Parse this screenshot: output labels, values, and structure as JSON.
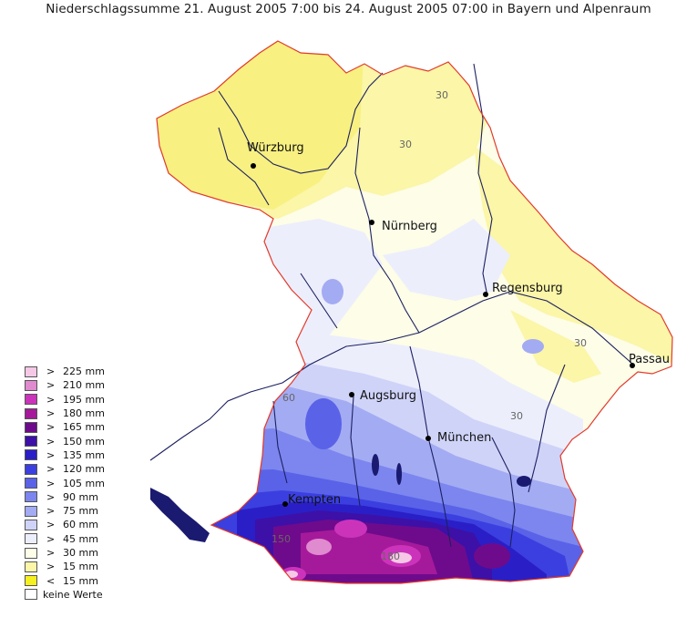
{
  "title": "Niederschlagssumme 21. August 2005 7:00 bis 24. August 2005 07:00 in Bayern und Alpenraum",
  "cities": [
    {
      "name": "Würzburg"
    },
    {
      "name": "Nürnberg"
    },
    {
      "name": "Regensburg"
    },
    {
      "name": "Passau"
    },
    {
      "name": "Augsburg"
    },
    {
      "name": "München"
    },
    {
      "name": "Kempten"
    }
  ],
  "contour_labels": [
    "30",
    "30",
    "30",
    "30",
    "60",
    "150",
    "180"
  ],
  "legend": {
    "items": [
      {
        "sym": ">",
        "value": "225 mm",
        "color": "#f5c8e6"
      },
      {
        "sym": ">",
        "value": "210 mm",
        "color": "#e08ad0"
      },
      {
        "sym": ">",
        "value": "195 mm",
        "color": "#cc33bb"
      },
      {
        "sym": ">",
        "value": "180 mm",
        "color": "#a51a9a"
      },
      {
        "sym": ">",
        "value": "165 mm",
        "color": "#6e0b8c"
      },
      {
        "sym": ">",
        "value": "150 mm",
        "color": "#3d10a8"
      },
      {
        "sym": ">",
        "value": "135 mm",
        "color": "#2a1fc6"
      },
      {
        "sym": ">",
        "value": "120 mm",
        "color": "#3b3fe0"
      },
      {
        "sym": ">",
        "value": "105 mm",
        "color": "#5a62e8"
      },
      {
        "sym": ">",
        "value": "90 mm",
        "color": "#7c86ee"
      },
      {
        "sym": ">",
        "value": "75 mm",
        "color": "#a3abf3"
      },
      {
        "sym": ">",
        "value": "60 mm",
        "color": "#cfd3f8"
      },
      {
        "sym": ">",
        "value": "45 mm",
        "color": "#eceefc"
      },
      {
        "sym": ">",
        "value": "30 mm",
        "color": "#fdfde8"
      },
      {
        "sym": ">",
        "value": "15 mm",
        "color": "#fbf6a8"
      },
      {
        "sym": "<",
        "value": "15 mm",
        "color": "#f5f020"
      }
    ],
    "nodata_label": "keine Werte",
    "nodata_color": "#ffffff"
  },
  "colors": {
    "border": "#e23a2a",
    "river": "#1c2060",
    "lake": "#1a1a70"
  }
}
